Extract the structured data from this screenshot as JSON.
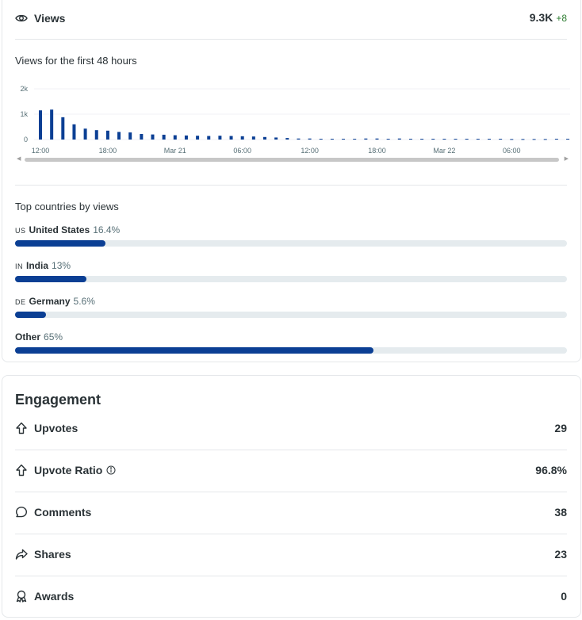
{
  "views": {
    "label": "Views",
    "value": "9.3K",
    "delta": "+8",
    "icon": "eye-icon"
  },
  "chart_title": "Views for the first 48 hours",
  "chart_data": {
    "type": "bar",
    "title": "Views for the first 48 hours",
    "xlabel": "",
    "ylabel": "",
    "ylim": [
      0,
      2000
    ],
    "y_ticks": [
      "2k",
      "1k",
      "0"
    ],
    "x_tick_labels": [
      "12:00",
      "18:00",
      "Mar 21",
      "06:00",
      "12:00",
      "18:00",
      "Mar 22",
      "06:00"
    ],
    "grid": true,
    "colors": {
      "bar": "#0b3f94"
    },
    "values": [
      1150,
      1180,
      880,
      600,
      430,
      370,
      350,
      300,
      280,
      220,
      200,
      190,
      170,
      160,
      150,
      140,
      150,
      140,
      130,
      120,
      100,
      80,
      60,
      40,
      40,
      30,
      30,
      30,
      30,
      40,
      40,
      30,
      40,
      30,
      30,
      30,
      30,
      30,
      30,
      30,
      30,
      30,
      20,
      20,
      20,
      20,
      30,
      30,
      20,
      20,
      20,
      20,
      20,
      20,
      20,
      20,
      20,
      20,
      20,
      20,
      20,
      20,
      20,
      20,
      20,
      20,
      20,
      20,
      20,
      20,
      20,
      20,
      20,
      20,
      20,
      20,
      20,
      20
    ]
  },
  "countries": {
    "title": "Top countries by views",
    "items": [
      {
        "code": "US",
        "name": "United States",
        "pct": "16.4%",
        "value": 16.4
      },
      {
        "code": "IN",
        "name": "India",
        "pct": "13%",
        "value": 13
      },
      {
        "code": "DE",
        "name": "Germany",
        "pct": "5.6%",
        "value": 5.6
      },
      {
        "code": "",
        "name": "Other",
        "pct": "65%",
        "value": 65
      }
    ]
  },
  "engagement": {
    "title": "Engagement",
    "rows": [
      {
        "label": "Upvotes",
        "value": "29",
        "icon": "upvote-icon"
      },
      {
        "label": "Upvote Ratio",
        "value": "96.8%",
        "icon": "upvote-icon",
        "info": true
      },
      {
        "label": "Comments",
        "value": "38",
        "icon": "comment-icon"
      },
      {
        "label": "Shares",
        "value": "23",
        "icon": "share-icon"
      },
      {
        "label": "Awards",
        "value": "0",
        "icon": "award-icon"
      }
    ]
  }
}
